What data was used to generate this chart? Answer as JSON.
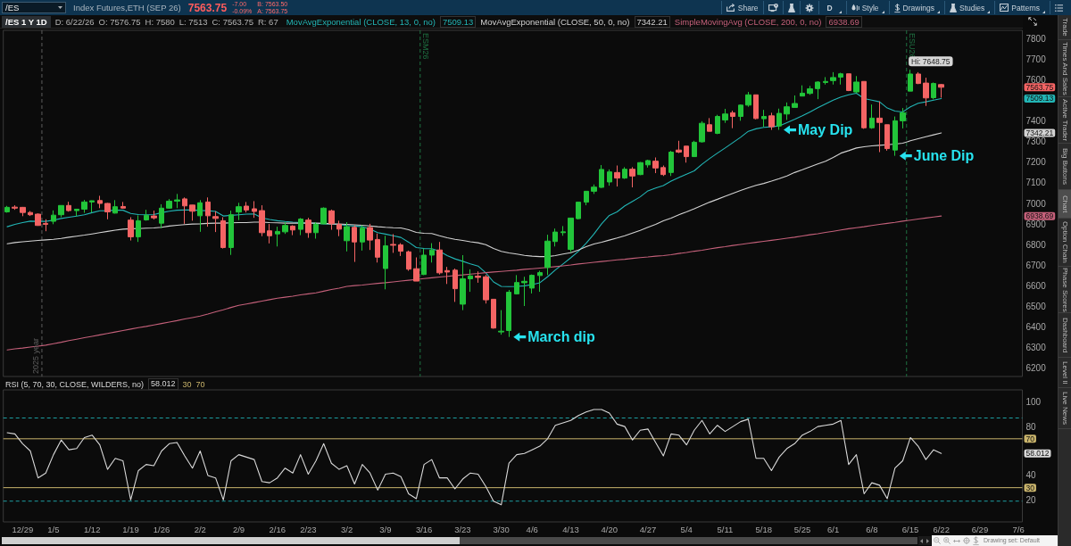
{
  "chart_data": [
    {
      "type": "candlestick",
      "categories": [
        null,
        null,
        "12/29",
        null,
        null,
        null,
        "1/5",
        null,
        null,
        null,
        null,
        "1/12",
        null,
        null,
        null,
        null,
        "1/19",
        null,
        null,
        null,
        "1/26",
        null,
        null,
        null,
        null,
        "2/2",
        null,
        null,
        null,
        null,
        "2/9",
        null,
        null,
        null,
        null,
        "2/16",
        null,
        null,
        null,
        "2/23",
        null,
        null,
        null,
        null,
        "3/2",
        null,
        null,
        null,
        null,
        "3/9",
        null,
        null,
        null,
        null,
        "3/16",
        null,
        null,
        null,
        null,
        "3/23",
        null,
        null,
        null,
        null,
        "3/30",
        null,
        null,
        null,
        "4/6",
        null,
        null,
        null,
        null,
        "4/13",
        null,
        null,
        null,
        null,
        "4/20",
        null,
        null,
        null,
        null,
        "4/27",
        null,
        null,
        null,
        null,
        "5/4",
        null,
        null,
        null,
        null,
        "5/11",
        null,
        null,
        null,
        null,
        "5/18",
        null,
        null,
        null,
        null,
        "5/25",
        null,
        null,
        null,
        "6/1",
        null,
        null,
        null,
        null,
        "6/8",
        null,
        null,
        null,
        null,
        "6/15",
        null,
        null,
        null,
        "6/22",
        null,
        null,
        null,
        null,
        "6/29",
        null,
        null,
        null,
        null,
        "7/6"
      ],
      "ohlc": [
        [
          6959,
          6988,
          6955,
          6981
        ],
        [
          6982,
          6991,
          6969,
          6977
        ],
        [
          6981,
          6983,
          6938,
          6956
        ],
        [
          6956,
          6963,
          6939,
          6945
        ],
        [
          6948,
          6952,
          6891,
          6893
        ],
        [
          6903,
          6923,
          6865,
          6898
        ],
        [
          6913,
          6966,
          6899,
          6943
        ],
        [
          6945,
          6990,
          6933,
          6990
        ],
        [
          6990,
          7008,
          6960,
          6965
        ],
        [
          6965,
          6974,
          6938,
          6972
        ],
        [
          6972,
          7017,
          6954,
          7007
        ],
        [
          7007,
          7014,
          6956,
          7013
        ],
        [
          7014,
          7037,
          6977,
          7000
        ],
        [
          7000,
          7002,
          6923,
          6959
        ],
        [
          6953,
          7016,
          6951,
          6984
        ],
        [
          6985,
          7007,
          6974,
          6977
        ],
        [
          6919,
          6933,
          6820,
          6838
        ],
        [
          6838,
          6942,
          6813,
          6916
        ],
        [
          6920,
          6969,
          6916,
          6942
        ],
        [
          6939,
          6965,
          6922,
          6930
        ],
        [
          6904,
          6996,
          6880,
          6977
        ],
        [
          6977,
          7021,
          6974,
          7011
        ],
        [
          7011,
          7046,
          6977,
          7017
        ],
        [
          7022,
          7029,
          6901,
          6988
        ],
        [
          6992,
          6993,
          6916,
          6962
        ],
        [
          6940,
          7016,
          6862,
          7003
        ],
        [
          7007,
          7029,
          6887,
          6940
        ],
        [
          6936,
          6962,
          6861,
          6927
        ],
        [
          6916,
          6933,
          6781,
          6786
        ],
        [
          6786,
          6965,
          6750,
          6945
        ],
        [
          6958,
          7003,
          6919,
          6984
        ],
        [
          6987,
          7007,
          6956,
          6968
        ],
        [
          6974,
          7011,
          6930,
          6961
        ],
        [
          6965,
          6991,
          6841,
          6858
        ],
        [
          6867,
          6900,
          6806,
          6843
        ],
        [
          6852,
          6887,
          6791,
          6864
        ],
        [
          6862,
          6909,
          6852,
          6893
        ],
        [
          6890,
          6894,
          6846,
          6871
        ],
        [
          6874,
          6929,
          6846,
          6924
        ],
        [
          6919,
          6930,
          6833,
          6858
        ],
        [
          6858,
          6909,
          6829,
          6899
        ],
        [
          6901,
          6981,
          6899,
          6977
        ],
        [
          6964,
          6970,
          6872,
          6901
        ],
        [
          6897,
          6916,
          6841,
          6875
        ],
        [
          6819,
          6909,
          6767,
          6887
        ],
        [
          6884,
          6894,
          6716,
          6813
        ],
        [
          6813,
          6894,
          6771,
          6880
        ],
        [
          6883,
          6901,
          6774,
          6822
        ],
        [
          6825,
          6854,
          6713,
          6739
        ],
        [
          6684,
          6843,
          6583,
          6794
        ],
        [
          6801,
          6851,
          6760,
          6797
        ],
        [
          6799,
          6807,
          6745,
          6768
        ],
        [
          6765,
          6771,
          6673,
          6681
        ],
        [
          6683,
          6738,
          6623,
          6623
        ],
        [
          6655,
          6781,
          6652,
          6749
        ],
        [
          6749,
          6807,
          6713,
          6774
        ],
        [
          6774,
          6813,
          6655,
          6663
        ],
        [
          6674,
          6692,
          6609,
          6667
        ],
        [
          6676,
          6684,
          6522,
          6586
        ],
        [
          6511,
          6749,
          6482,
          6634
        ],
        [
          6634,
          6680,
          6571,
          6648
        ],
        [
          6647,
          6670,
          6615,
          6641
        ],
        [
          6644,
          6653,
          6514,
          6532
        ],
        [
          6535,
          6535,
          6392,
          6395
        ],
        [
          6376,
          6482,
          6363,
          6380
        ],
        [
          6383,
          6580,
          6352,
          6569
        ],
        [
          6561,
          6652,
          6558,
          6616
        ],
        [
          6615,
          6644,
          6502,
          6622
        ],
        [
          6589,
          6655,
          6563,
          6651
        ],
        [
          6650,
          6673,
          6571,
          6664
        ],
        [
          6689,
          6848,
          6652,
          6817
        ],
        [
          6815,
          6878,
          6791,
          6861
        ],
        [
          6858,
          6890,
          6843,
          6862
        ],
        [
          6777,
          6929,
          6764,
          6929
        ],
        [
          6926,
          7006,
          6922,
          7006
        ],
        [
          7006,
          7059,
          6991,
          7059
        ],
        [
          7059,
          7092,
          7046,
          7079
        ],
        [
          7078,
          7186,
          7075,
          7165
        ],
        [
          7104,
          7165,
          7086,
          7153
        ],
        [
          7150,
          7184,
          7082,
          7123
        ],
        [
          7123,
          7176,
          7119,
          7166
        ],
        [
          7166,
          7176,
          7078,
          7133
        ],
        [
          7140,
          7201,
          7137,
          7198
        ],
        [
          7187,
          7212,
          7174,
          7208
        ],
        [
          7205,
          7223,
          7147,
          7172
        ],
        [
          7174,
          7184,
          7133,
          7140
        ],
        [
          7150,
          7255,
          7133,
          7249
        ],
        [
          7259,
          7304,
          7244,
          7249
        ],
        [
          7278,
          7278,
          7198,
          7227
        ],
        [
          7227,
          7304,
          7227,
          7297
        ],
        [
          7299,
          7399,
          7295,
          7389
        ],
        [
          7382,
          7414,
          7350,
          7350
        ],
        [
          7340,
          7430,
          7336,
          7422
        ],
        [
          7405,
          7459,
          7391,
          7434
        ],
        [
          7440,
          7450,
          7365,
          7422
        ],
        [
          7422,
          7480,
          7401,
          7477
        ],
        [
          7477,
          7541,
          7469,
          7527
        ],
        [
          7527,
          7527,
          7408,
          7412
        ],
        [
          7411,
          7454,
          7372,
          7422
        ],
        [
          7425,
          7440,
          7357,
          7372
        ],
        [
          7376,
          7460,
          7357,
          7437
        ],
        [
          7434,
          7490,
          7405,
          7469
        ],
        [
          7466,
          7524,
          7466,
          7485
        ],
        [
          7521,
          7573,
          7521,
          7535
        ],
        [
          7534,
          7570,
          7527,
          7556
        ],
        [
          7557,
          7593,
          7506,
          7589
        ],
        [
          7587,
          7613,
          7577,
          7592
        ],
        [
          7596,
          7637,
          7577,
          7611
        ],
        [
          7613,
          7634,
          7577,
          7629
        ],
        [
          7629,
          7629,
          7545,
          7548
        ],
        [
          7541,
          7618,
          7535,
          7589
        ],
        [
          7592,
          7592,
          7362,
          7367
        ],
        [
          7367,
          7480,
          7362,
          7414
        ],
        [
          7414,
          7495,
          7249,
          7393
        ],
        [
          7382,
          7382,
          7256,
          7266
        ],
        [
          7259,
          7422,
          7231,
          7401
        ],
        [
          7401,
          7463,
          7364,
          7440
        ],
        [
          7545,
          7648.75,
          7545,
          7628
        ],
        [
          7628,
          7637,
          7579,
          7582
        ],
        [
          7584,
          7610,
          7473,
          7512
        ],
        [
          7513,
          7587,
          7505,
          7582
        ],
        [
          7576.75,
          7580,
          7513,
          7563.75
        ],
        null,
        null,
        null,
        null,
        null,
        null,
        null,
        null,
        null,
        null
      ],
      "colors": [
        "#22c53a",
        "#f46464",
        "#f46464",
        "#f46464",
        "#f46464",
        "#f46464",
        "#22c53a",
        "#22c53a",
        "#f46464",
        "#22c53a",
        "#22c53a",
        "#22c53a",
        "#f46464",
        "#f46464",
        "#22c53a",
        "#f46464",
        "#f46464",
        "#22c53a",
        "#22c53a",
        "#f46464",
        "#22c53a",
        "#22c53a",
        "#22c53a",
        "#f46464",
        "#f46464",
        "#22c53a",
        "#f46464",
        "#f46464",
        "#f46464",
        "#22c53a",
        "#22c53a",
        "#f46464",
        "#f46464",
        "#f46464",
        "#f46464",
        "#22c53a",
        "#22c53a",
        "#f46464",
        "#22c53a",
        "#f46464",
        "#22c53a",
        "#22c53a",
        "#f46464",
        "#f46464",
        "#22c53a",
        "#f46464",
        "#22c53a",
        "#f46464",
        "#f46464",
        "#22c53a",
        "#f46464",
        "#f46464",
        "#f46464",
        "#f46464",
        "#22c53a",
        "#22c53a",
        "#f46464",
        "#f46464",
        "#f46464",
        "#22c53a",
        "#22c53a",
        "#f46464",
        "#f46464",
        "#f46464",
        "#22c53a",
        "#22c53a",
        "#22c53a",
        "#22c53a",
        "#22c53a",
        "#22c53a",
        "#22c53a",
        "#22c53a",
        "#22c53a",
        "#22c53a",
        "#22c53a",
        "#22c53a",
        "#22c53a",
        "#22c53a",
        "#22c53a",
        "#f46464",
        "#22c53a",
        "#f46464",
        "#22c53a",
        "#22c53a",
        "#f46464",
        "#f46464",
        "#22c53a",
        "#f46464",
        "#f46464",
        "#22c53a",
        "#22c53a",
        "#f46464",
        "#22c53a",
        "#22c53a",
        "#f46464",
        "#22c53a",
        "#22c53a",
        "#f46464",
        "#22c53a",
        "#f46464",
        "#22c53a",
        "#22c53a",
        "#22c53a",
        "#22c53a",
        "#22c53a",
        "#22c53a",
        "#22c53a",
        "#22c53a",
        "#22c53a",
        "#f46464",
        "#22c53a",
        "#f46464",
        "#22c53a",
        "#f46464",
        "#f46464",
        "#22c53a",
        "#22c53a",
        "#22c53a",
        "#f46464",
        "#f46464",
        "#22c53a",
        "#f46464",
        null,
        null,
        null,
        null,
        null,
        null,
        null,
        null,
        null,
        null
      ],
      "series": [
        {
          "type": "line",
          "name": "MovAvgExponential (CLOSE, 13, 0, no)",
          "color": "#22b5b5",
          "values": [
            6887,
            6898,
            6907,
            6914,
            6913,
            6913,
            6919,
            6927,
            6933,
            6938,
            6945,
            6955,
            6964,
            6965,
            6967,
            6967,
            6951,
            6946,
            6945,
            6946,
            6955,
            6962,
            6967,
            6968,
            6968,
            6966,
            6965,
            6961,
            6939,
            6942,
            6945,
            6948,
            6949,
            6930,
            6922,
            6916,
            6912,
            6909,
            6907,
            6906,
            6903,
            6901,
            6900,
            6897,
            6893,
            6890,
            6887,
            6875,
            6858,
            6851,
            6843,
            6835,
            6812,
            6786,
            6781,
            6780,
            6768,
            6747,
            6731,
            6719,
            6707,
            6696,
            6663,
            6619,
            6597,
            6596,
            6597,
            6600,
            6606,
            6615,
            6644,
            6677,
            6706,
            6736,
            6768,
            6807,
            6851,
            6901,
            6942,
            6959,
            6988,
            7010,
            7032,
            7061,
            7075,
            7087,
            7108,
            7126,
            7142,
            7158,
            7190,
            7218,
            7244,
            7269,
            7295,
            7321,
            7350,
            7362,
            7369,
            7372,
            7376,
            7392,
            7408,
            7425,
            7444,
            7464,
            7483,
            7501,
            7516,
            7527,
            7535,
            7509,
            7501,
            7493,
            7463,
            7448,
            7444,
            7469,
            7486,
            7493,
            7501,
            7509.13,
            null,
            null,
            null,
            null,
            null,
            null,
            null,
            null,
            null,
            null
          ]
        },
        {
          "type": "line",
          "name": "MovAvgExponential (CLOSE, 50, 0, no)",
          "color": "#d2d2d2",
          "values": [
            6804,
            6810,
            6814,
            6817,
            6820,
            6823,
            6826,
            6830,
            6836,
            6841,
            6846,
            6852,
            6858,
            6864,
            6870,
            6875,
            6877,
            6878,
            6880,
            6881,
            6884,
            6890,
            6894,
            6897,
            6900,
            6901,
            6903,
            6904,
            6904,
            6906,
            6907,
            6907,
            6909,
            6909,
            6907,
            6906,
            6904,
            6904,
            6904,
            6904,
            6904,
            6903,
            6901,
            6900,
            6898,
            6896,
            6894,
            6891,
            6887,
            6884,
            6882,
            6881,
            6872,
            6859,
            6855,
            6854,
            6843,
            6833,
            6826,
            6820,
            6814,
            6809,
            6800,
            6781,
            6767,
            6760,
            6754,
            6748,
            6744,
            6742,
            6742,
            6747,
            6754,
            6761,
            6774,
            6790,
            6803,
            6812,
            6822,
            6832,
            6843,
            6856,
            6869,
            6884,
            6898,
            6916,
            6929,
            6945,
            6959,
            6974,
            6990,
            7006,
            7020,
            7035,
            7049,
            7063,
            7076,
            7088,
            7097,
            7108,
            7120,
            7133,
            7150,
            7163,
            7178,
            7192,
            7205,
            7223,
            7244,
            7256,
            7269,
            7275,
            7279,
            7282,
            7285,
            7288,
            7292,
            7304,
            7314,
            7324,
            7333,
            7342.21,
            null,
            null,
            null,
            null,
            null,
            null,
            null,
            null,
            null,
            null
          ]
        },
        {
          "type": "line",
          "name": "SimpleMovingAvg (CLOSE, 200, 0, no)",
          "color": "#c4607a",
          "values": [
            6289,
            6294,
            6298,
            6303,
            6307,
            6312,
            6319,
            6326,
            6334,
            6341,
            6348,
            6355,
            6362,
            6369,
            6376,
            6383,
            6390,
            6397,
            6403,
            6410,
            6417,
            6424,
            6431,
            6439,
            6446,
            6453,
            6463,
            6474,
            6484,
            6495,
            6505,
            6512,
            6519,
            6526,
            6533,
            6540,
            6545,
            6550,
            6556,
            6561,
            6566,
            6574,
            6582,
            6589,
            6597,
            6601,
            6604,
            6608,
            6612,
            6615,
            6619,
            6623,
            6627,
            6631,
            6635,
            6639,
            6643,
            6646,
            6650,
            6653,
            6657,
            6660,
            6664,
            6667,
            6670,
            6673,
            6676,
            6680,
            6683,
            6686,
            6689,
            6693,
            6697,
            6701,
            6706,
            6710,
            6714,
            6718,
            6722,
            6726,
            6729,
            6733,
            6737,
            6740,
            6744,
            6747,
            6751,
            6757,
            6762,
            6768,
            6773,
            6779,
            6785,
            6790,
            6796,
            6801,
            6806,
            6811,
            6816,
            6821,
            6826,
            6831,
            6836,
            6842,
            6848,
            6853,
            6859,
            6865,
            6871,
            6877,
            6882,
            6887,
            6893,
            6898,
            6903,
            6908,
            6914,
            6919,
            6924,
            6929,
            6934,
            6938.69,
            null,
            null,
            null,
            null,
            null,
            null,
            null,
            null,
            null,
            null
          ]
        }
      ],
      "ylim": [
        6160,
        7840
      ],
      "yticks": [
        6200,
        6300,
        6400,
        6500,
        6600,
        6700,
        6800,
        6900,
        7000,
        7100,
        7200,
        7300,
        7400,
        7600,
        7700,
        7800
      ],
      "tick_labels": "y",
      "marker": "none",
      "legend": "top left",
      "ref_lines": [
        {
          "axis": "x",
          "label": "2025 year",
          "color": "#5e5e5e",
          "line_style": "dashed"
        },
        {
          "axis": "x",
          "label": "ESM26",
          "color": "#1f7242",
          "line_style": "dashed"
        },
        {
          "axis": "x",
          "label": "ESU26",
          "color": "#1f7242",
          "line_style": "dashed"
        }
      ],
      "annotations": [
        "/ES",
        "Index Futures,ETH (SEP 26)",
        "7563.75",
        "-7.00",
        "-0.09%",
        "B: 7563.50",
        "A: 7563.75",
        "Share",
        "D",
        "Style",
        "Drawings",
        "Studies",
        "Patterns",
        "/ES 1 Y 1D",
        "D: 6/22/26",
        "O: 7576.75",
        "H: 7580",
        "L: 7513",
        "C: 7563.75",
        "R: 67",
        "Trade",
        "Times And Sales",
        "Active Trader",
        "Big Buttons",
        "Chart",
        "Option Chain",
        "Phase Scores",
        "Dashboard",
        "Level II",
        "Live News",
        "Drawing set: Default",
        {
          "text": "Hi: 7648.75",
          "x": "6/15",
          "y": 7648.75
        },
        "March dip",
        "May Dip",
        "June Dip",
        "7563.75",
        "7509.13",
        "7342.21",
        "6938.69"
      ]
    },
    {
      "type": "line",
      "categories": [
        null,
        null,
        "12/29",
        null,
        null,
        null,
        "1/5",
        null,
        null,
        null,
        null,
        "1/12",
        null,
        null,
        null,
        null,
        "1/19",
        null,
        null,
        null,
        "1/26",
        null,
        null,
        null,
        null,
        "2/2",
        null,
        null,
        null,
        null,
        "2/9",
        null,
        null,
        null,
        null,
        "2/16",
        null,
        null,
        null,
        "2/23",
        null,
        null,
        null,
        null,
        "3/2",
        null,
        null,
        null,
        null,
        "3/9",
        null,
        null,
        null,
        null,
        "3/16",
        null,
        null,
        null,
        null,
        "3/23",
        null,
        null,
        null,
        null,
        "3/30",
        null,
        null,
        null,
        "4/6",
        null,
        null,
        null,
        null,
        "4/13",
        null,
        null,
        null,
        null,
        "4/20",
        null,
        null,
        null,
        null,
        "4/27",
        null,
        null,
        null,
        null,
        "5/4",
        null,
        null,
        null,
        null,
        "5/11",
        null,
        null,
        null,
        null,
        "5/18",
        null,
        null,
        null,
        null,
        "5/25",
        null,
        null,
        null,
        "6/1",
        null,
        null,
        null,
        null,
        "6/8",
        null,
        null,
        null,
        null,
        "6/15",
        null,
        null,
        null,
        "6/22",
        null,
        null,
        null,
        null,
        "6/29",
        null,
        null,
        null,
        null,
        "7/6"
      ],
      "series": [
        {
          "name": "RSI (5, 70, 30, CLOSE, WILDERS, no)",
          "color": "#d9d9d9",
          "values": [
            75,
            74,
            66,
            60,
            38,
            42,
            57,
            69,
            61,
            62,
            71,
            73,
            65,
            45,
            54,
            52,
            20,
            44,
            49,
            48,
            60,
            66,
            67,
            56,
            46,
            60,
            40,
            38,
            20,
            52,
            57,
            55,
            53,
            35,
            34,
            38,
            46,
            42,
            57,
            41,
            52,
            66,
            50,
            45,
            48,
            33,
            49,
            42,
            28,
            41,
            42,
            39,
            25,
            21,
            49,
            53,
            38,
            38,
            29,
            37,
            42,
            41,
            31,
            19,
            16,
            50,
            57,
            58,
            61,
            64,
            70,
            81,
            83,
            85,
            89,
            92,
            94,
            94,
            91,
            82,
            80,
            69,
            77,
            78,
            67,
            56,
            74,
            73,
            65,
            77,
            85,
            74,
            81,
            76,
            80,
            84,
            86,
            54,
            54,
            44,
            55,
            62,
            66,
            73,
            76,
            80,
            81,
            82,
            85,
            49,
            57,
            25,
            34,
            32,
            21,
            46,
            52,
            71,
            64,
            53,
            61,
            58.012,
            null,
            null,
            null,
            null,
            null,
            null,
            null,
            null,
            null,
            null
          ]
        }
      ],
      "ylim": [
        2,
        110
      ],
      "yticks": [
        20,
        40,
        80,
        100
      ],
      "marker": "none",
      "legend": "top left",
      "ref_lines": [
        {
          "axis": "y",
          "value": 30,
          "label": "30",
          "color": "#c9b46c"
        },
        {
          "axis": "y",
          "value": 70,
          "label": "70",
          "color": "#c9b46c"
        },
        {
          "axis": "y",
          "value": 87,
          "color": "#1d9fa3",
          "line_style": "dashed"
        },
        {
          "axis": "y",
          "value": 19,
          "color": "#1d9fa3",
          "line_style": "dashed"
        }
      ],
      "annotations": [
        "58.012"
      ]
    }
  ]
}
